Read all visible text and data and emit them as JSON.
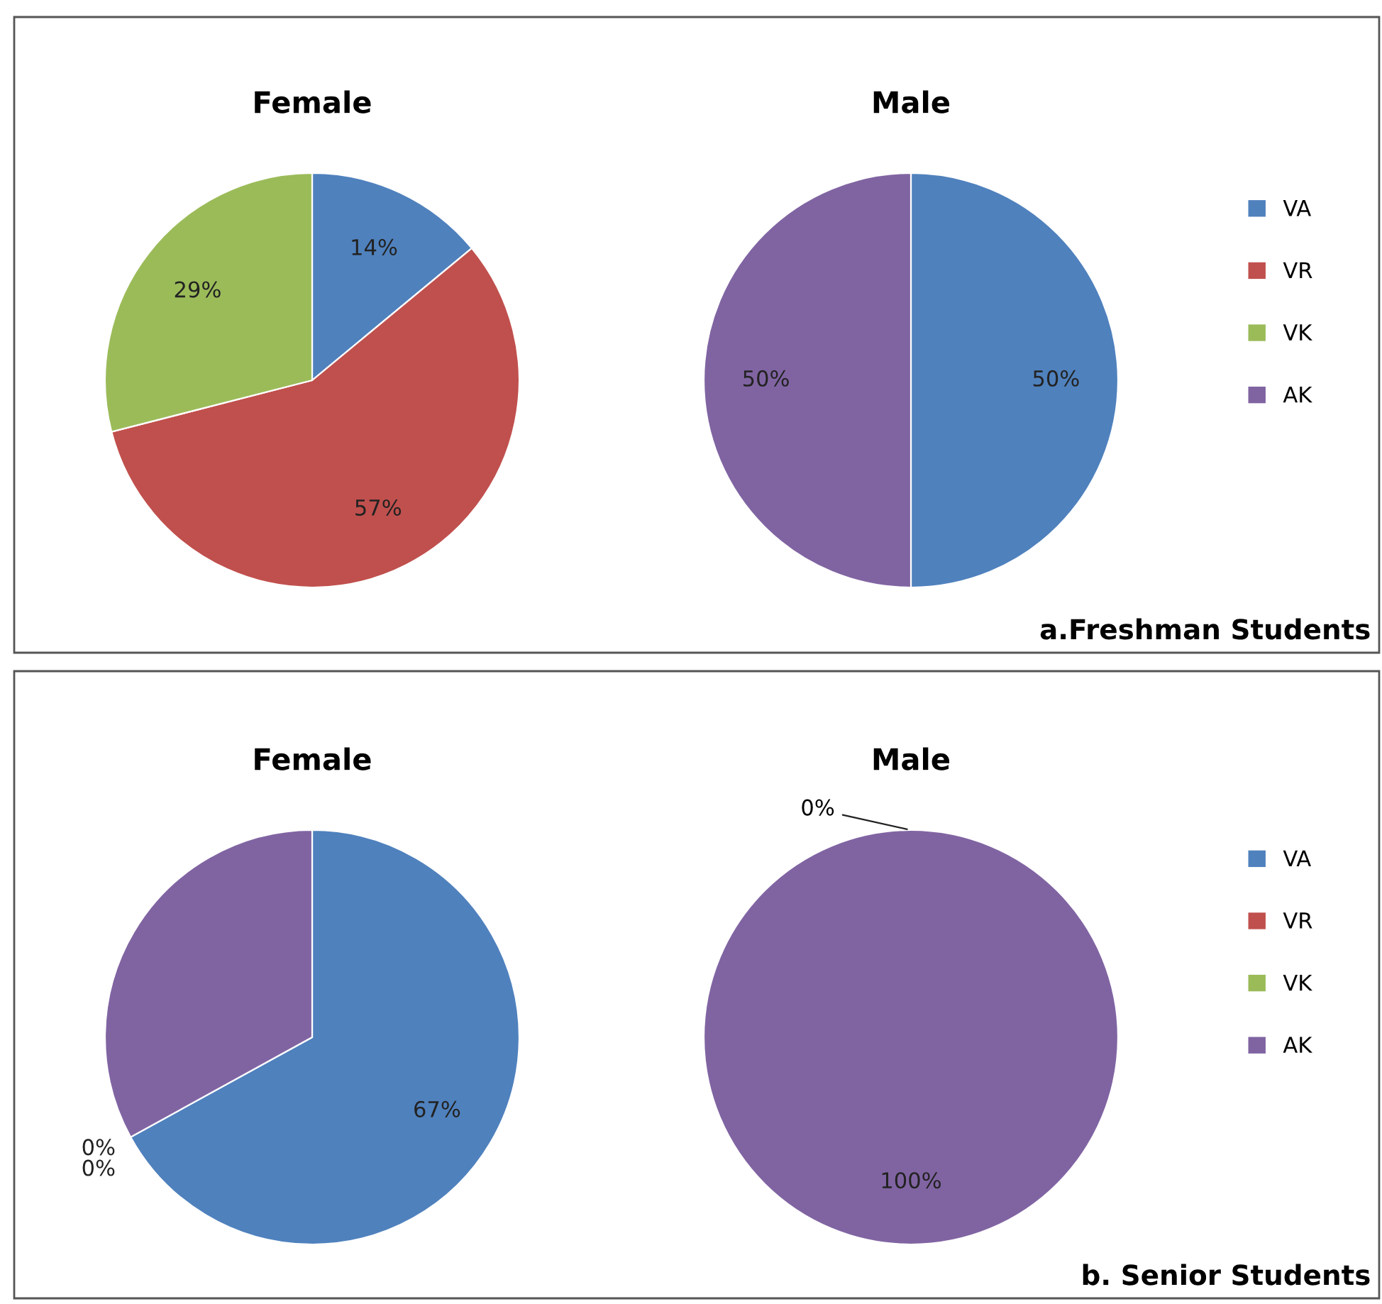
{
  "chart_data": [
    {
      "type": "pie",
      "categories": [
        "VA",
        "VR",
        "VK",
        "AK"
      ],
      "colors": [
        "#4f81bd",
        "#c0504d",
        "#9bbb59",
        "#8064a2"
      ],
      "legend": "right",
      "annotations": [
        "a.Freshman Students"
      ],
      "series": [
        {
          "name": "Female",
          "values": [
            14,
            57,
            29,
            0
          ],
          "value_labels": [
            "14%",
            "57%",
            "29%",
            null
          ]
        },
        {
          "name": "Male",
          "values": [
            50,
            0,
            0,
            50
          ],
          "value_labels": [
            "50%",
            null,
            null,
            "50%"
          ]
        }
      ]
    },
    {
      "type": "pie",
      "categories": [
        "VA",
        "VR",
        "VK",
        "AK"
      ],
      "colors": [
        "#4f81bd",
        "#c0504d",
        "#9bbb59",
        "#8064a2"
      ],
      "legend": "right",
      "annotations": [
        "b. Senior Students"
      ],
      "series": [
        {
          "name": "Female",
          "values": [
            67,
            0,
            0,
            33
          ],
          "value_labels": [
            "67%",
            "0%",
            "0%",
            null
          ]
        },
        {
          "name": "Male",
          "values": [
            0,
            0,
            0,
            100
          ],
          "value_labels": [
            "0%",
            null,
            null,
            "100%"
          ]
        }
      ]
    }
  ]
}
